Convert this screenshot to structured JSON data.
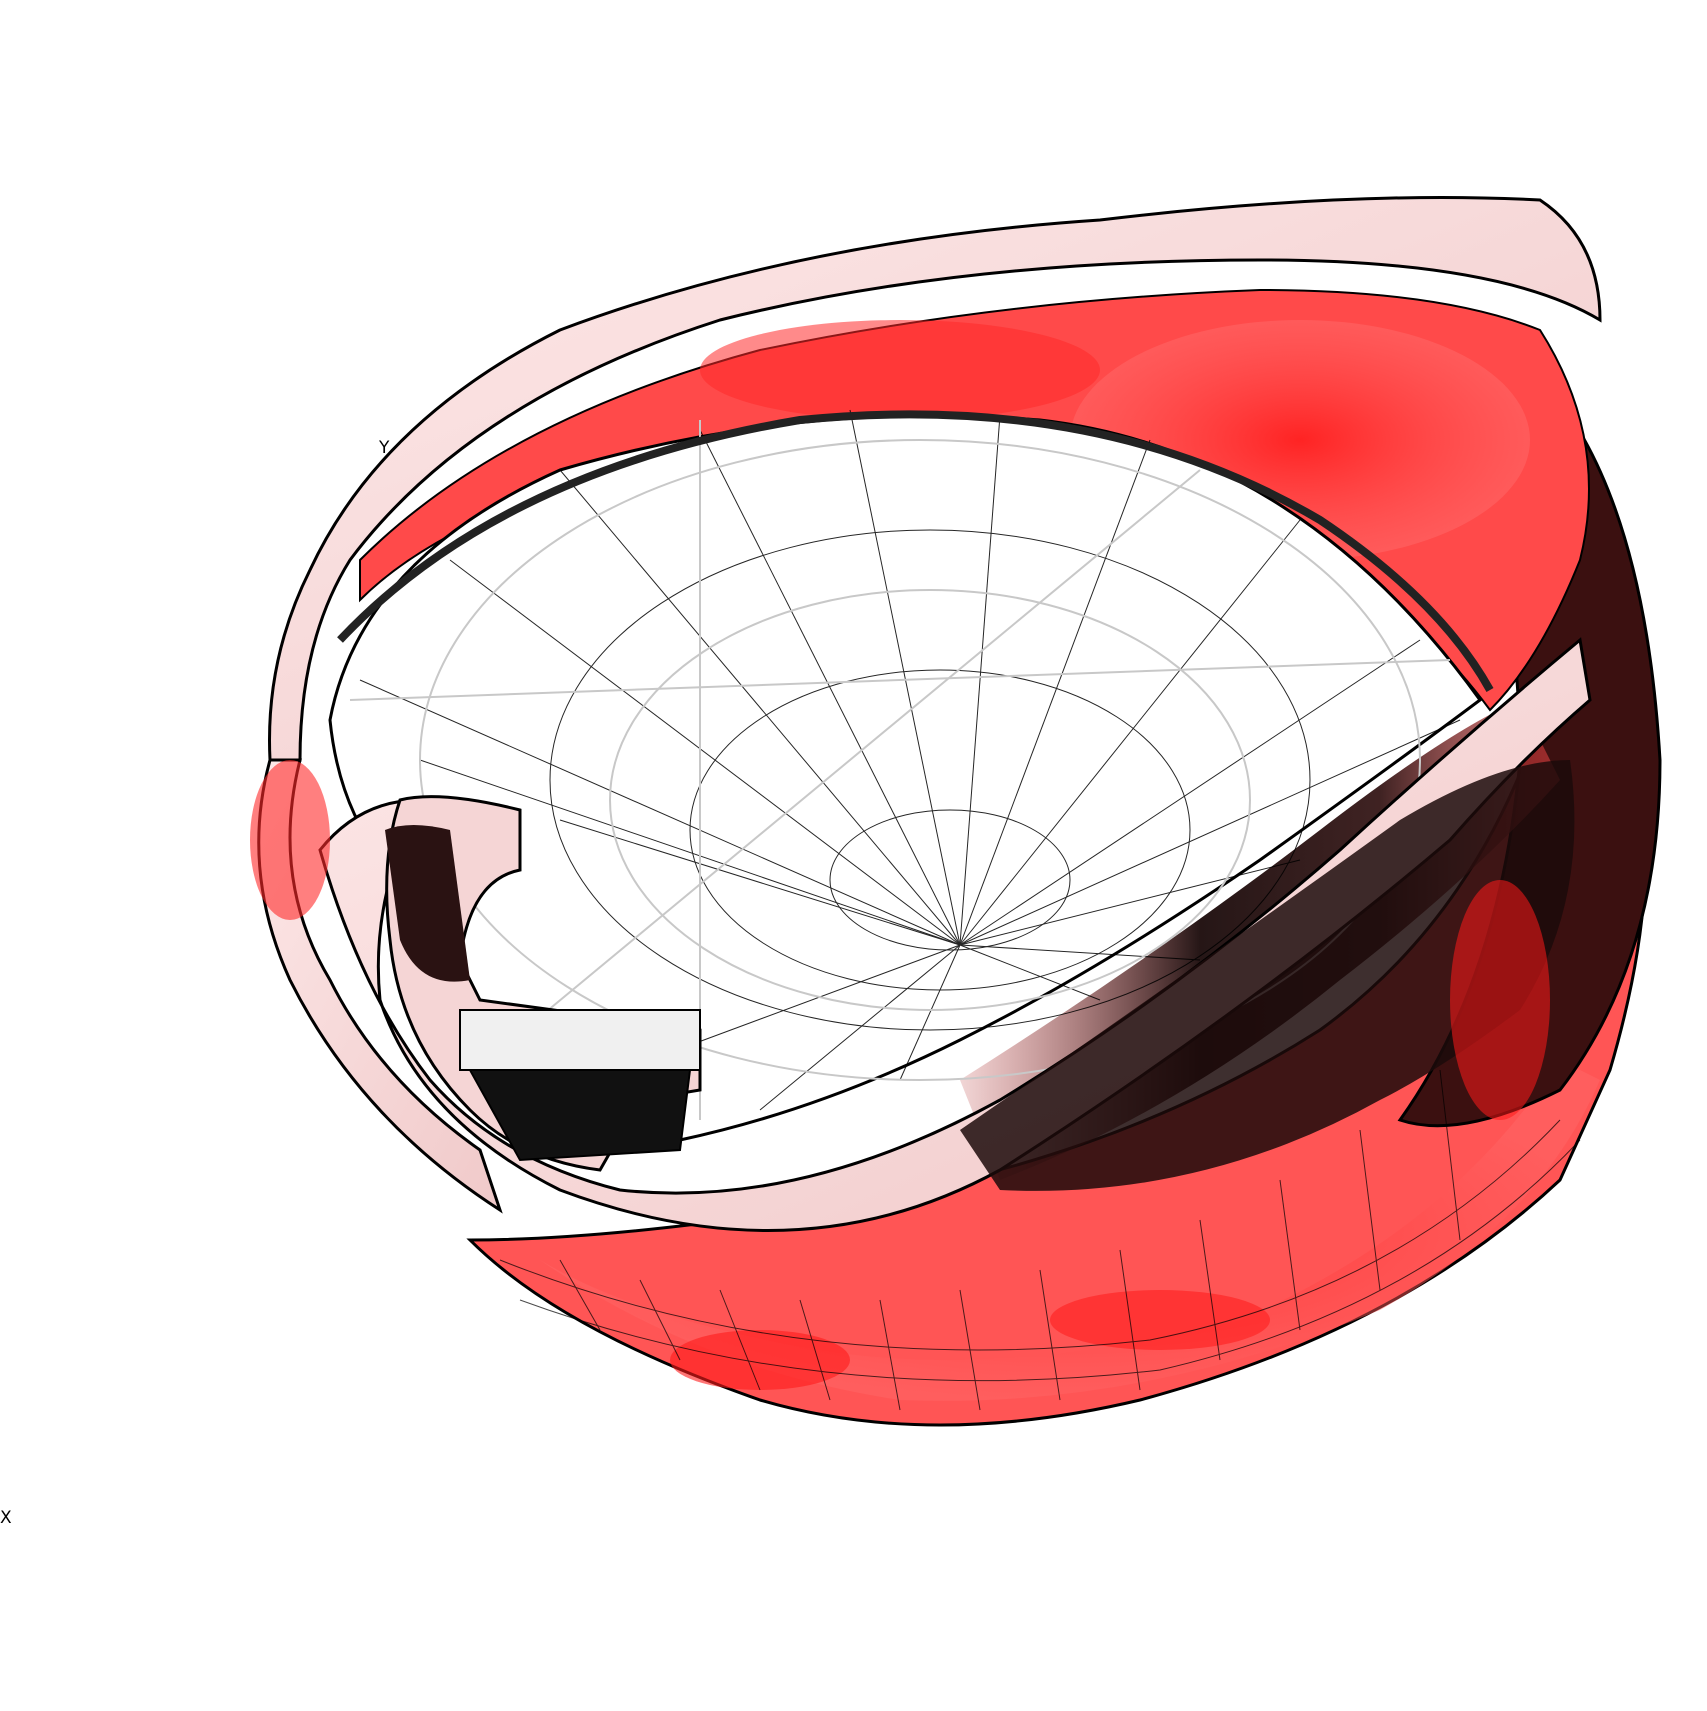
{
  "axes": {
    "y_label": "Y",
    "x_label": "X"
  },
  "colors": {
    "background": "#ffffff",
    "mesh_line": "#000000",
    "hidden_line": "#c8c8c8",
    "stress_high": "#ff2020",
    "stress_low": "#fbe4e4"
  }
}
